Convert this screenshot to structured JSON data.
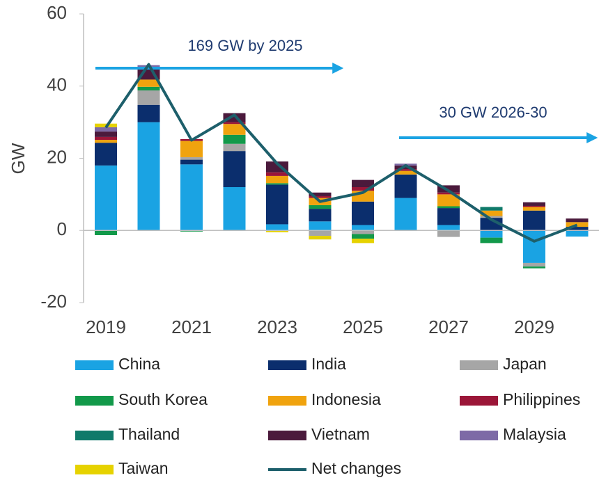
{
  "chart_data": {
    "type": "bar",
    "stacked": true,
    "y_label": "GW",
    "annotations": [
      "169 GW by 2025",
      "30 GW 2026-30"
    ],
    "categories": [
      "2019",
      null,
      "2021",
      null,
      "2023",
      null,
      "2025",
      null,
      "2027",
      null,
      "2029",
      null
    ],
    "ylim": [
      -20,
      60
    ],
    "yticks": [
      -20,
      0,
      20,
      40,
      60
    ],
    "series": [
      {
        "name": "China",
        "color": "#1aa3e3",
        "values": [
          18,
          30,
          18.3,
          12,
          1.7,
          2.5,
          1.5,
          9,
          1.5,
          -2,
          -9,
          -1.7
        ]
      },
      {
        "name": "India",
        "color": "#0b2e6d",
        "values": [
          6.3,
          4.8,
          1.3,
          10,
          11,
          3.5,
          6.5,
          6.5,
          4.7,
          3.5,
          5.5,
          1
        ]
      },
      {
        "name": "Japan",
        "color": "#a6a6a6",
        "values": [
          0,
          4,
          0.7,
          2,
          0,
          -1.5,
          -1,
          0,
          -1.8,
          0.5,
          -1,
          0
        ]
      },
      {
        "name": "South Korea",
        "color": "#12994a",
        "values": [
          -1.3,
          1,
          -0.3,
          2.5,
          0.4,
          1,
          -1.3,
          0,
          0.5,
          -1.5,
          -0.5,
          0
        ]
      },
      {
        "name": "Indonesia",
        "color": "#f0a30e",
        "values": [
          0.8,
          2,
          4.5,
          3,
          2,
          2,
          3,
          1,
          3.3,
          1.5,
          1,
          1.3
        ]
      },
      {
        "name": "Philippines",
        "color": "#9b1638",
        "values": [
          0.8,
          0,
          0.5,
          0.5,
          1,
          0.5,
          1,
          0.5,
          0.5,
          0,
          0.3,
          0
        ]
      },
      {
        "name": "Thailand",
        "color": "#107a6a",
        "values": [
          0,
          0,
          0,
          0,
          0,
          0,
          0,
          0,
          0,
          1,
          0,
          0
        ]
      },
      {
        "name": "Vietnam",
        "color": "#4b1a3c",
        "values": [
          1.5,
          3,
          0,
          2.5,
          3,
          1,
          2,
          1,
          2,
          0,
          1,
          1
        ]
      },
      {
        "name": "Malaysia",
        "color": "#7d6aa6",
        "values": [
          1.2,
          1,
          0,
          0,
          0,
          0,
          0,
          0.5,
          0,
          0,
          0,
          0
        ]
      },
      {
        "name": "Taiwan",
        "color": "#e6d200",
        "values": [
          1,
          0,
          0,
          0,
          -0.5,
          -1,
          -1.2,
          0,
          0,
          0,
          0,
          0
        ]
      }
    ],
    "line_series": {
      "name": "Net changes",
      "color": "#1d5f6b",
      "values": [
        28.5,
        46,
        25,
        32,
        18.5,
        8,
        10.5,
        18,
        11,
        3,
        -3,
        1.5
      ]
    }
  }
}
